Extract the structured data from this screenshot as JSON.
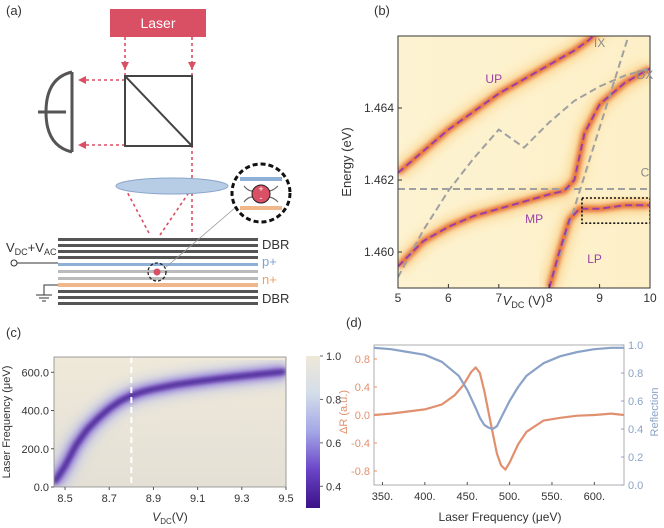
{
  "panels": {
    "a": "(a)",
    "b": "(b)",
    "c": "(c)",
    "d": "(d)"
  },
  "schematic": {
    "laser": "Laser",
    "vdc": "V",
    "vdc_sub": "DC",
    "plus_vac": "+V",
    "vac_sub": "AC",
    "dbr_top": "DBR",
    "p_plus": "p+",
    "n_plus": "n+",
    "dbr_bottom": "DBR",
    "plus_sign": "+",
    "minus_sign": "-"
  },
  "colors": {
    "laser": "#d94f63",
    "p_layer": "#8fb0d6",
    "n_layer": "#f0b88a",
    "dbr": "#555555",
    "lens": "#b7cde6",
    "purple_dash": "#9b3fa6",
    "gray_dash": "#a0a0a0",
    "orange_trace": "#e0906f",
    "blue_trace": "#8aa2c8"
  },
  "chart_data": [
    {
      "id": "b",
      "type": "heatmap",
      "title": "",
      "xlabel": "V",
      "xlabel_sub": "DC",
      "xlabel_unit": "(V)",
      "ylabel": "Energy (eV)",
      "xlim": [
        5,
        10
      ],
      "ylim": [
        1.459,
        1.466
      ],
      "xticks": [
        5,
        6,
        7,
        8,
        9,
        10
      ],
      "yticks": [
        1.46,
        1.462,
        1.464
      ],
      "ytick_labels": [
        "1.460",
        "1.462",
        "1.464"
      ],
      "curve_labels": [
        {
          "name": "UP",
          "x": 6.9,
          "y": 1.4647
        },
        {
          "name": "MP",
          "x": 7.7,
          "y": 1.4608
        },
        {
          "name": "LP",
          "x": 8.9,
          "y": 1.4597
        },
        {
          "name": "IX",
          "x": 9.0,
          "y": 1.4657
        },
        {
          "name": "DX",
          "x": 9.9,
          "y": 1.4648
        },
        {
          "name": "C",
          "x": 9.9,
          "y": 1.4621
        }
      ],
      "cavity_energy": 1.46175,
      "ix_line": {
        "x": [
          8.0,
          9.55
        ],
        "y": [
          1.459,
          1.4659
        ]
      },
      "dx_curve": {
        "x": [
          5.0,
          5.5,
          6.0,
          6.5,
          7.0,
          7.5,
          8.0,
          8.5,
          9.0,
          9.5,
          10.0
        ],
        "y": [
          1.4593,
          1.4606,
          1.4617,
          1.4626,
          1.4634,
          1.4629,
          1.4636,
          1.4642,
          1.4646,
          1.4649,
          1.4651
        ]
      },
      "up_curve": {
        "x": [
          5.0,
          5.5,
          6.0,
          6.5,
          7.0,
          7.5,
          8.0,
          8.5,
          8.8,
          9.0,
          9.3,
          9.6
        ],
        "y": [
          1.4622,
          1.4628,
          1.4634,
          1.4639,
          1.4644,
          1.4648,
          1.4652,
          1.4656,
          1.4659,
          1.4662,
          1.4665,
          1.4669
        ]
      },
      "mp_curve": {
        "x": [
          5.0,
          5.5,
          6.0,
          6.5,
          7.0,
          7.5,
          8.0,
          8.3,
          8.5,
          8.7,
          9.0,
          9.5,
          10.0
        ],
        "y": [
          1.4596,
          1.4603,
          1.4607,
          1.461,
          1.4612,
          1.4614,
          1.4616,
          1.4617,
          1.462,
          1.4633,
          1.4641,
          1.4647,
          1.4651
        ]
      },
      "lp_curve": {
        "x": [
          8.0,
          8.2,
          8.4,
          8.6,
          8.8,
          9.0,
          9.5,
          10.0
        ],
        "y": [
          1.459,
          1.46,
          1.4609,
          1.4612,
          1.4612,
          1.4612,
          1.4613,
          1.4613
        ]
      },
      "inset_box": {
        "x": [
          8.65,
          10.0
        ],
        "y": [
          1.4608,
          1.4615
        ]
      }
    },
    {
      "id": "c",
      "type": "heatmap",
      "title": "",
      "xlabel": "V",
      "xlabel_sub": "DC",
      "xlabel_unit": "(V)",
      "ylabel": "Laser Frequency (μeV)",
      "xlim": [
        8.45,
        9.5
      ],
      "ylim": [
        0,
        680
      ],
      "xticks": [
        8.5,
        8.7,
        8.9,
        9.1,
        9.3,
        9.5
      ],
      "xtick_labels": [
        "8.5",
        "8.7",
        "8.9",
        "9.1",
        "9.3",
        "9.5"
      ],
      "yticks": [
        0,
        200,
        400,
        600
      ],
      "ytick_labels": [
        "0.0",
        "200.0",
        "400.0",
        "600.0"
      ],
      "ridge": {
        "x": [
          8.45,
          8.5,
          8.55,
          8.6,
          8.65,
          8.7,
          8.75,
          8.8,
          8.85,
          8.9,
          9.0,
          9.1,
          9.2,
          9.3,
          9.4,
          9.5
        ],
        "y": [
          20,
          110,
          220,
          300,
          360,
          410,
          450,
          478,
          498,
          512,
          535,
          552,
          567,
          580,
          592,
          604
        ]
      },
      "marker_v": 8.8,
      "colorbar": {
        "min": 0.3,
        "max": 1.0,
        "ticks": [
          0.4,
          0.6,
          0.8,
          1.0
        ],
        "tick_labels": [
          "0.4",
          "0.6",
          "0.8",
          "1.0"
        ]
      }
    },
    {
      "id": "d",
      "type": "line",
      "title": "",
      "xlabel": "Laser Frequency (μeV)",
      "ylabel_left": "ΔR (a.u.)",
      "ylabel_right": "Reflection",
      "xlim": [
        340,
        635
      ],
      "ylim_left": [
        -1.0,
        1.0
      ],
      "ylim_right": [
        0.0,
        1.0
      ],
      "xticks": [
        350,
        400,
        450,
        500,
        550,
        600
      ],
      "xtick_labels": [
        "350.",
        "400.",
        "450.",
        "500.",
        "550.",
        "600."
      ],
      "yticks_left": [
        -0.8,
        -0.4,
        0.0,
        0.4,
        0.8
      ],
      "ytick_labels_left": [
        "-0.8",
        "-0.4",
        "0.0",
        "0.4",
        "0.8"
      ],
      "yticks_right": [
        0.0,
        0.2,
        0.4,
        0.6,
        0.8,
        1.0
      ],
      "ytick_labels_right": [
        "0.0",
        "0.2",
        "0.4",
        "0.6",
        "0.8",
        "1.0"
      ],
      "series": [
        {
          "name": "ΔR",
          "axis": "left",
          "color": "#e0906f",
          "x": [
            340,
            360,
            380,
            400,
            420,
            435,
            445,
            455,
            460,
            465,
            470,
            475,
            480,
            485,
            490,
            495,
            500,
            510,
            520,
            540,
            560,
            580,
            600,
            620,
            635
          ],
          "y": [
            0.0,
            0.02,
            0.05,
            0.08,
            0.15,
            0.28,
            0.42,
            0.62,
            0.68,
            0.6,
            0.35,
            0.05,
            -0.25,
            -0.55,
            -0.72,
            -0.78,
            -0.68,
            -0.42,
            -0.24,
            -0.08,
            -0.04,
            -0.01,
            0.0,
            0.02,
            0.0
          ]
        },
        {
          "name": "Reflection",
          "axis": "right",
          "color": "#8aa2c8",
          "x": [
            340,
            360,
            380,
            400,
            420,
            440,
            450,
            460,
            465,
            470,
            475,
            480,
            485,
            490,
            500,
            510,
            520,
            540,
            560,
            580,
            600,
            620,
            635
          ],
          "y": [
            0.98,
            0.97,
            0.95,
            0.93,
            0.88,
            0.78,
            0.68,
            0.55,
            0.48,
            0.43,
            0.41,
            0.4,
            0.42,
            0.48,
            0.6,
            0.7,
            0.78,
            0.87,
            0.92,
            0.95,
            0.97,
            0.98,
            0.98
          ]
        }
      ]
    }
  ]
}
